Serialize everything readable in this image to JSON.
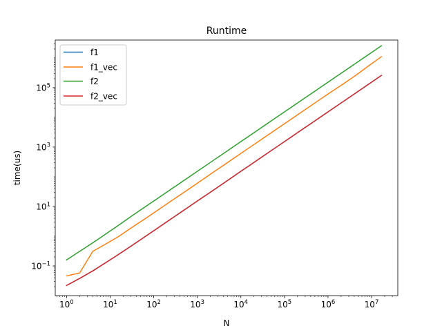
{
  "chart_data": {
    "type": "line",
    "title": "Runtime",
    "xlabel": "N",
    "ylabel": "time(us)",
    "xscale": "log",
    "yscale": "log",
    "xlim": [
      0.55,
      40000000
    ],
    "ylim": [
      0.01,
      4000000
    ],
    "grid": false,
    "legend_position": "top-left",
    "x_ticks": [
      {
        "value": 1,
        "base": "10",
        "exp": "0"
      },
      {
        "value": 10,
        "base": "10",
        "exp": "1"
      },
      {
        "value": 100,
        "base": "10",
        "exp": "2"
      },
      {
        "value": 1000,
        "base": "10",
        "exp": "3"
      },
      {
        "value": 10000,
        "base": "10",
        "exp": "4"
      },
      {
        "value": 100000,
        "base": "10",
        "exp": "5"
      },
      {
        "value": 1000000,
        "base": "10",
        "exp": "6"
      },
      {
        "value": 10000000,
        "base": "10",
        "exp": "7"
      }
    ],
    "y_ticks": [
      {
        "value": 0.1,
        "base": "10",
        "exp": "−1"
      },
      {
        "value": 10,
        "base": "10",
        "exp": "1"
      },
      {
        "value": 1000,
        "base": "10",
        "exp": "3"
      },
      {
        "value": 100000,
        "base": "10",
        "exp": "5"
      }
    ],
    "x": [
      1,
      2,
      4,
      8,
      16,
      32,
      64,
      128,
      256,
      512,
      1024,
      2048,
      4096,
      8192,
      16384,
      32768,
      65536,
      131072,
      262144,
      524288,
      1048576,
      2097152,
      4194304,
      8388608,
      16777216
    ],
    "series": [
      {
        "name": "f1",
        "color": "#1f77b4",
        "values": [
          0.022,
          0.038,
          0.068,
          0.13,
          0.25,
          0.49,
          0.98,
          1.95,
          3.9,
          7.8,
          15.6,
          31,
          62,
          125,
          250,
          500,
          1000,
          2000,
          4000,
          8000,
          16000,
          32000,
          64000,
          128000,
          256000
        ]
      },
      {
        "name": "f1_vec",
        "color": "#ff7f0e",
        "values": [
          0.046,
          0.058,
          0.31,
          0.55,
          1.0,
          2.0,
          3.9,
          7.8,
          15.6,
          31,
          62,
          125,
          250,
          500,
          1000,
          2000,
          4000,
          8000,
          16000,
          32000,
          64000,
          125000,
          250000,
          530000,
          1100000
        ]
      },
      {
        "name": "f2",
        "color": "#2ca02c",
        "values": [
          0.16,
          0.31,
          0.6,
          1.2,
          2.4,
          4.9,
          9.8,
          19.5,
          39,
          78,
          156,
          312,
          625,
          1250,
          2500,
          5000,
          10000,
          20000,
          40000,
          80000,
          160000,
          320000,
          640000,
          1280000,
          2560000
        ]
      },
      {
        "name": "f2_vec",
        "color": "#d62728",
        "values": [
          0.022,
          0.038,
          0.068,
          0.13,
          0.25,
          0.49,
          0.98,
          1.95,
          3.9,
          7.8,
          15.6,
          31,
          62,
          125,
          250,
          500,
          1000,
          2000,
          4000,
          8000,
          16000,
          32000,
          64000,
          128000,
          256000
        ]
      }
    ]
  }
}
